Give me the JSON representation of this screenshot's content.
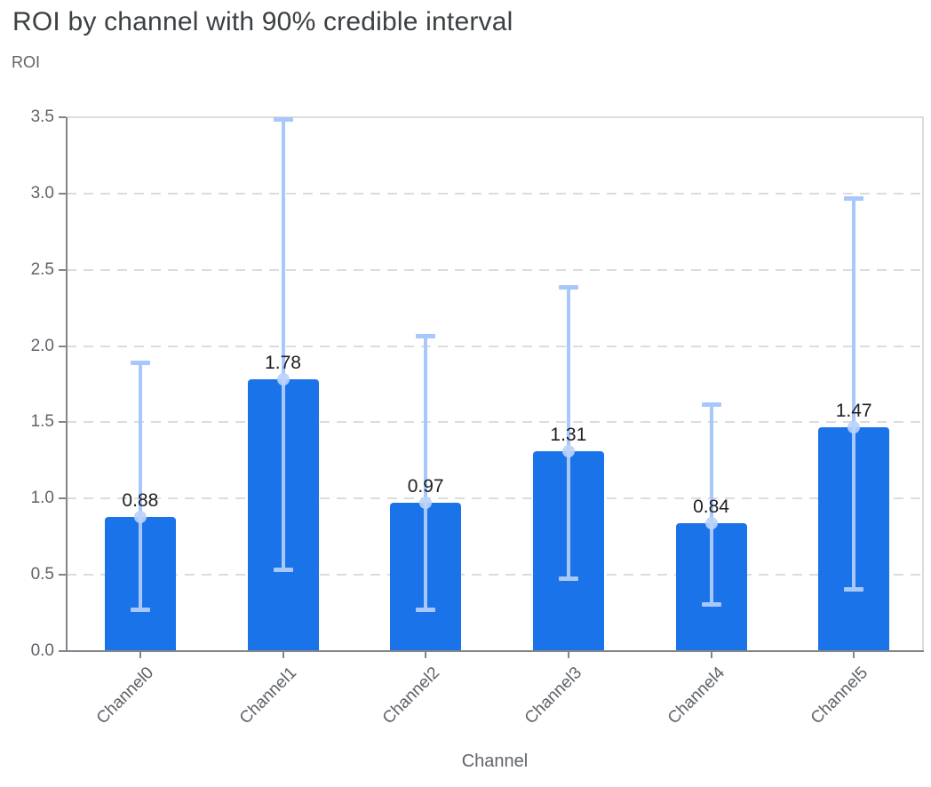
{
  "header": {
    "title": "ROI by channel with 90% credible interval",
    "y_axis_title": "ROI",
    "x_axis_title": "Channel"
  },
  "chart_data": {
    "type": "bar",
    "title": "ROI by channel with 90% credible interval",
    "xlabel": "Channel",
    "ylabel": "ROI",
    "categories": [
      "Channel0",
      "Channel1",
      "Channel2",
      "Channel3",
      "Channel4",
      "Channel5"
    ],
    "values": [
      0.88,
      1.78,
      0.97,
      1.31,
      0.84,
      1.47
    ],
    "value_labels": [
      "0.88",
      "1.78",
      "0.97",
      "1.31",
      "0.84",
      "1.47"
    ],
    "interval_name": "90% credible interval",
    "error_low": [
      0.27,
      0.53,
      0.27,
      0.47,
      0.3,
      0.4
    ],
    "error_high": [
      1.89,
      3.49,
      2.07,
      2.39,
      1.62,
      2.97
    ],
    "ylim": [
      0,
      3.5
    ],
    "ytick_step": 0.5,
    "ytick_labels": [
      "0.0",
      "0.5",
      "1.0",
      "1.5",
      "2.0",
      "2.5",
      "3.0",
      "3.5"
    ],
    "grid": "horizontal-dashed",
    "legend": "none",
    "colors": {
      "bar": "#1a73e8",
      "error_bar": "#a8c7fa",
      "marker": "#bdd3f9",
      "grid": "#dadce0",
      "axis": "#80868b",
      "title_text": "#3c4043",
      "tick_text": "#5f6368",
      "value_text": "#202124",
      "background": "#ffffff"
    }
  }
}
